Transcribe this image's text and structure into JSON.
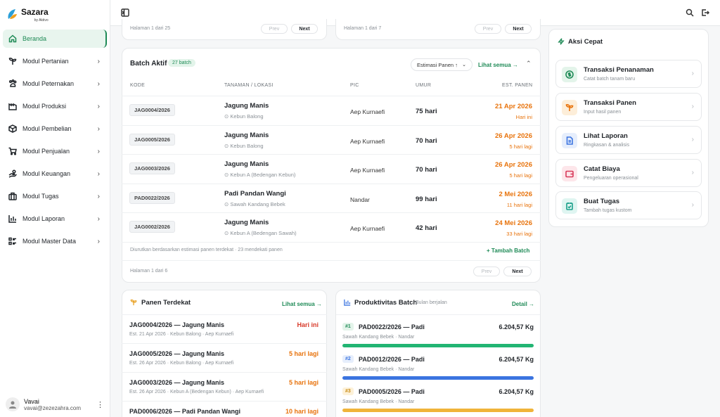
{
  "brand": {
    "name": "Sazara",
    "sub": "by Aktivo"
  },
  "sidebar": {
    "items": [
      {
        "label": "Beranda",
        "icon": "home-icon",
        "active": true
      },
      {
        "label": "Modul Pertanian",
        "icon": "sprout-icon"
      },
      {
        "label": "Modul Peternakan",
        "icon": "livestock-icon"
      },
      {
        "label": "Modul Produksi",
        "icon": "factory-icon"
      },
      {
        "label": "Modul Pembelian",
        "icon": "box-icon"
      },
      {
        "label": "Modul Penjualan",
        "icon": "cart-icon"
      },
      {
        "label": "Modul Keuangan",
        "icon": "money-icon"
      },
      {
        "label": "Modul Tugas",
        "icon": "briefcase-icon"
      },
      {
        "label": "Modul Laporan",
        "icon": "chart-icon"
      },
      {
        "label": "Modul Master Data",
        "icon": "list-icon"
      }
    ]
  },
  "user": {
    "name": "Vavai",
    "email": "vavai@zezezahra.com"
  },
  "top_pagers": {
    "left": {
      "text": "Halaman 1 dari 25",
      "prev": "Prev",
      "next": "Next"
    },
    "right": {
      "text": "Halaman 1 dari 7",
      "prev": "Prev",
      "next": "Next"
    }
  },
  "batch": {
    "title": "Batch Aktif",
    "badge": "27 batch",
    "sort_label": "Estimasi Panen ↑",
    "see_all": "Lihat semua →",
    "columns": {
      "kode": "KODE",
      "tanaman": "TANAMAN / LOKASI",
      "pic": "PIC",
      "umur": "UMUR",
      "est": "EST. PANEN"
    },
    "rows": [
      {
        "code": "JAG0004/2026",
        "name": "Jagung Manis",
        "loc": "Kebun Balong",
        "pic": "Aep Kurnaefi",
        "age": "75 hari",
        "date": "21 Apr 2026",
        "when": "Hari ini",
        "urgent": true
      },
      {
        "code": "JAG0005/2026",
        "name": "Jagung Manis",
        "loc": "Kebun Balong",
        "pic": "Aep Kurnaefi",
        "age": "70 hari",
        "date": "26 Apr 2026",
        "when": "5 hari lagi"
      },
      {
        "code": "JAG0003/2026",
        "name": "Jagung Manis",
        "loc": "Kebun A (Bedengan Kebun)",
        "pic": "Aep Kurnaefi",
        "age": "70 hari",
        "date": "26 Apr 2026",
        "when": "5 hari lagi"
      },
      {
        "code": "PAD0022/2026",
        "name": "Padi Pandan Wangi",
        "loc": "Sawah Kandang Bebek",
        "pic": "Nandar",
        "age": "99 hari",
        "date": "2 Mei 2026",
        "when": "11 hari lagi"
      },
      {
        "code": "JAG0002/2026",
        "name": "Jagung Manis",
        "loc": "Kebun A (Bedengan Sawah)",
        "pic": "Aep Kurnaefi",
        "age": "42 hari",
        "date": "24 Mei 2026",
        "when": "33 hari lagi"
      }
    ],
    "footer_note": "Diurutkan berdasarkan estimasi panen terdekat · 23 mendekati panen",
    "add_label": "+ Tambah Batch",
    "pager": {
      "text": "Halaman 1 dari 6",
      "prev": "Prev",
      "next": "Next"
    }
  },
  "harvest": {
    "title": "Panen Terdekat",
    "see_all": "Lihat semua →",
    "items": [
      {
        "title": "JAG0004/2026 — Jagung Manis",
        "sub": "Est. 21 Apr 2026 · Kebun Balong · Aep Kurnaefi",
        "when": "Hari ini",
        "urgent": true
      },
      {
        "title": "JAG0005/2026 — Jagung Manis",
        "sub": "Est. 26 Apr 2026 · Kebun Balong · Aep Kurnaefi",
        "when": "5 hari lagi"
      },
      {
        "title": "JAG0003/2026 — Jagung Manis",
        "sub": "Est. 26 Apr 2026 · Kebun A (Bedengan Kebun) · Aep Kurnaefi",
        "when": "5 hari lagi"
      },
      {
        "title": "PAD0006/2026 — Padi Pandan Wangi",
        "sub": "",
        "when": "10 hari lagi"
      }
    ]
  },
  "productivity": {
    "title": "Produktivitas Batch",
    "subtitle": "Bulan berjalan",
    "detail": "Detail →",
    "items": [
      {
        "rank": "#1",
        "title": "PAD0022/2026 — Padi",
        "value": "6.204,57 Kg",
        "sub": "Sawah Kandang Bebek · Nandar",
        "color": "#22b573",
        "rank_bg": "#e3f4ea",
        "rank_fg": "#1e8a56"
      },
      {
        "rank": "#2",
        "title": "PAD0012/2026 — Padi",
        "value": "6.204,57 Kg",
        "sub": "Sawah Kandang Bebek · Nandar",
        "color": "#3b74e0",
        "rank_bg": "#e6eefc",
        "rank_fg": "#3b74e0"
      },
      {
        "rank": "#3",
        "title": "PAD0005/2026 — Padi",
        "value": "6.204,57 Kg",
        "sub": "Sawah Kandang Bebek · Nandar",
        "color": "#f0b43a",
        "rank_bg": "#fdf1d8",
        "rank_fg": "#c88a12"
      }
    ]
  },
  "quick": {
    "title": "Aksi Cepat",
    "items": [
      {
        "title": "Transaksi Penanaman",
        "sub": "Catat batch tanam baru",
        "icon": "dollar-icon",
        "bg": "#e3f4ea",
        "fg": "#1e8a56"
      },
      {
        "title": "Transaksi Panen",
        "sub": "Input hasil panen",
        "icon": "sprout-icon",
        "bg": "#fdeed9",
        "fg": "#e8730c"
      },
      {
        "title": "Lihat Laporan",
        "sub": "Ringkasan & analisis",
        "icon": "document-icon",
        "bg": "#e6eefc",
        "fg": "#3b74e0"
      },
      {
        "title": "Catat Biaya",
        "sub": "Pengeluaran operasional",
        "icon": "wallet-icon",
        "bg": "#fde6ea",
        "fg": "#d83a5a"
      },
      {
        "title": "Buat Tugas",
        "sub": "Tambah tugas kustom",
        "icon": "task-icon",
        "bg": "#dff5f1",
        "fg": "#1aa08a"
      }
    ]
  }
}
